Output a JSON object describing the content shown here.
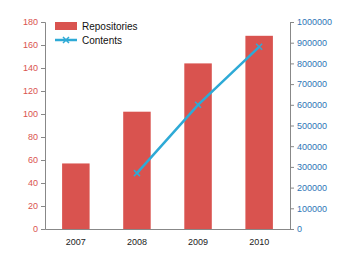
{
  "chart_data": {
    "type": "bar",
    "categories": [
      "2007",
      "2008",
      "2009",
      "2010"
    ],
    "series": [
      {
        "name": "Repositories",
        "type": "bar",
        "color": "#d9534f",
        "values": [
          57,
          102,
          144,
          168
        ]
      },
      {
        "name": "Contents",
        "type": "line",
        "color": "#2eaad6",
        "marker": "x",
        "axis": "y2",
        "values": [
          null,
          270000,
          600000,
          880000
        ]
      }
    ],
    "ylim": [
      0,
      180
    ],
    "yticks": [
      0,
      20,
      40,
      60,
      80,
      100,
      120,
      140,
      160,
      180
    ],
    "y2lim": [
      0,
      1000000
    ],
    "y2ticks": [
      0,
      100000,
      200000,
      300000,
      400000,
      500000,
      600000,
      700000,
      800000,
      900000,
      1000000
    ],
    "grid": false,
    "legend": "top-left"
  }
}
